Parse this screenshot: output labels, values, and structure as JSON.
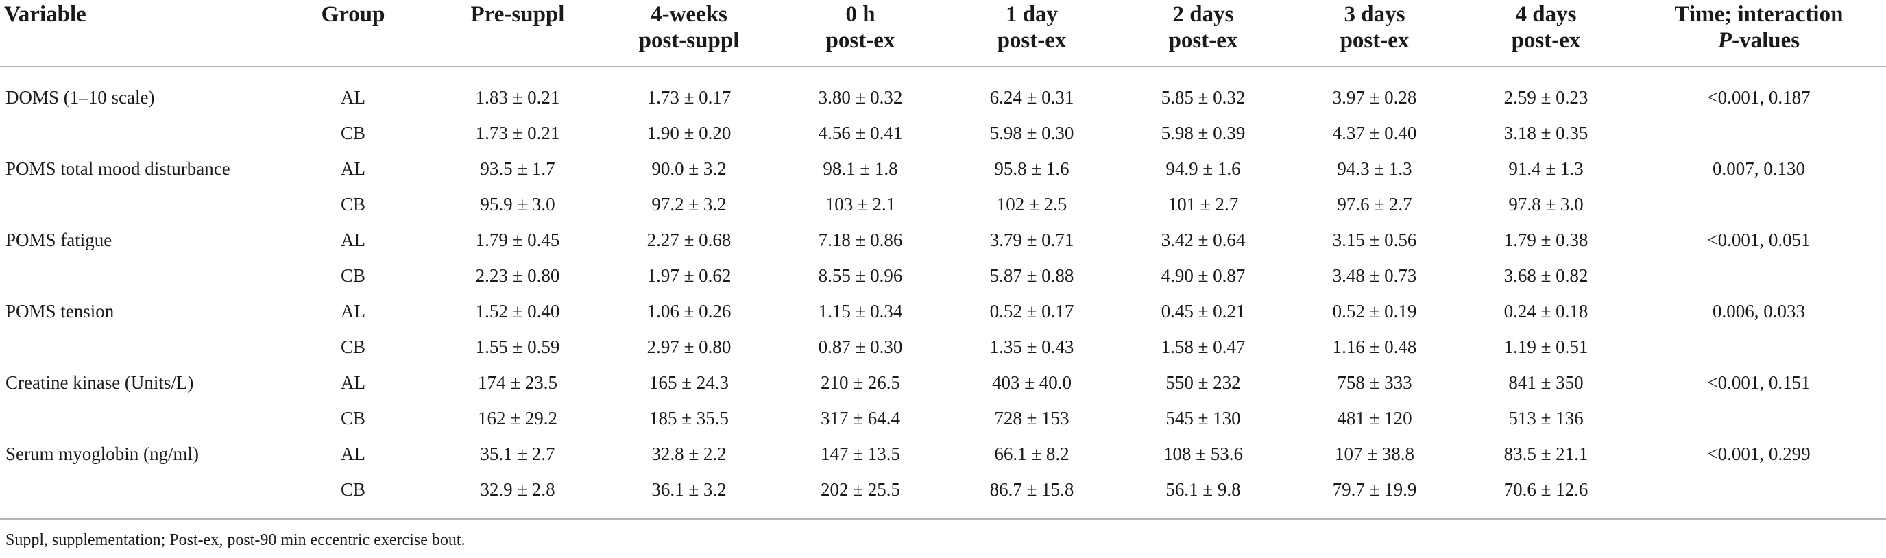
{
  "table": {
    "headers": [
      {
        "line1": "Variable",
        "line2": ""
      },
      {
        "line1": "Group",
        "line2": ""
      },
      {
        "line1": "Pre-suppl",
        "line2": ""
      },
      {
        "line1": "4-weeks",
        "line2": "post-suppl"
      },
      {
        "line1": "0 h",
        "line2": "post-ex"
      },
      {
        "line1": "1 day",
        "line2": "post-ex"
      },
      {
        "line1": "2 days",
        "line2": "post-ex"
      },
      {
        "line1": "3 days",
        "line2": "post-ex"
      },
      {
        "line1": "4 days",
        "line2": "post-ex"
      },
      {
        "line1": "Time; interaction",
        "line2": "P-values"
      }
    ],
    "rows": [
      [
        "DOMS (1–10 scale)",
        "AL",
        "1.83 ± 0.21",
        "1.73 ± 0.17",
        "3.80 ± 0.32",
        "6.24 ± 0.31",
        "5.85 ± 0.32",
        "3.97 ± 0.28",
        "2.59 ± 0.23",
        "<0.001, 0.187"
      ],
      [
        "",
        "CB",
        "1.73 ± 0.21",
        "1.90 ± 0.20",
        "4.56 ± 0.41",
        "5.98 ± 0.30",
        "5.98 ± 0.39",
        "4.37 ± 0.40",
        "3.18 ± 0.35",
        ""
      ],
      [
        "POMS total mood disturbance",
        "AL",
        "93.5 ± 1.7",
        "90.0 ± 3.2",
        "98.1 ± 1.8",
        "95.8 ± 1.6",
        "94.9 ± 1.6",
        "94.3 ± 1.3",
        "91.4 ± 1.3",
        "0.007, 0.130"
      ],
      [
        "",
        "CB",
        "95.9 ± 3.0",
        "97.2 ± 3.2",
        "103 ± 2.1",
        "102 ± 2.5",
        "101 ± 2.7",
        "97.6 ± 2.7",
        "97.8 ± 3.0",
        ""
      ],
      [
        "POMS fatigue",
        "AL",
        "1.79 ± 0.45",
        "2.27 ± 0.68",
        "7.18 ± 0.86",
        "3.79 ± 0.71",
        "3.42 ± 0.64",
        "3.15 ± 0.56",
        "1.79 ± 0.38",
        "<0.001, 0.051"
      ],
      [
        "",
        "CB",
        "2.23 ± 0.80",
        "1.97 ± 0.62",
        "8.55 ± 0.96",
        "5.87 ± 0.88",
        "4.90 ± 0.87",
        "3.48 ± 0.73",
        "3.68 ± 0.82",
        ""
      ],
      [
        "POMS tension",
        "AL",
        "1.52 ± 0.40",
        "1.06 ± 0.26",
        "1.15 ± 0.34",
        "0.52 ± 0.17",
        "0.45 ± 0.21",
        "0.52 ± 0.19",
        "0.24 ± 0.18",
        "0.006, 0.033"
      ],
      [
        "",
        "CB",
        "1.55 ± 0.59",
        "2.97 ± 0.80",
        "0.87 ± 0.30",
        "1.35 ± 0.43",
        "1.58 ± 0.47",
        "1.16 ± 0.48",
        "1.19 ± 0.51",
        ""
      ],
      [
        "Creatine kinase (Units/L)",
        "AL",
        "174 ± 23.5",
        "165 ± 24.3",
        "210 ± 26.5",
        "403 ± 40.0",
        "550 ± 232",
        "758 ± 333",
        "841 ± 350",
        "<0.001, 0.151"
      ],
      [
        "",
        "CB",
        "162 ± 29.2",
        "185 ± 35.5",
        "317 ± 64.4",
        "728 ± 153",
        "545 ± 130",
        "481 ± 120",
        "513 ± 136",
        ""
      ],
      [
        "Serum myoglobin (ng/ml)",
        "AL",
        "35.1 ± 2.7",
        "32.8 ± 2.2",
        "147 ± 13.5",
        "66.1 ± 8.2",
        "108 ± 53.6",
        "107 ± 38.8",
        "83.5 ± 21.1",
        "<0.001, 0.299"
      ],
      [
        "",
        "CB",
        "32.9 ± 2.8",
        "36.1 ± 3.2",
        "202 ± 25.5",
        "86.7 ± 15.8",
        "56.1 ± 9.8",
        "79.7 ± 19.9",
        "70.6 ± 12.6",
        ""
      ]
    ]
  },
  "footnote": "Suppl, supplementation; Post-ex, post-90 min eccentric exercise bout."
}
